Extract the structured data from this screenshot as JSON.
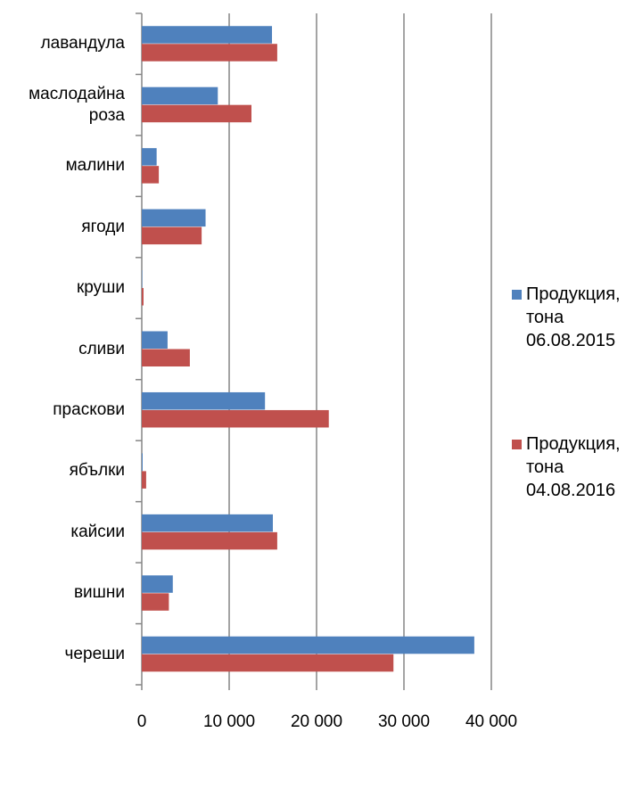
{
  "chart_data": {
    "type": "bar",
    "orientation": "horizontal",
    "categories": [
      "лавандула",
      "маслодайна роза",
      "малини",
      "ягоди",
      "круши",
      "сливи",
      "праскови",
      "ябълки",
      "кайсии",
      "вишни",
      "череши"
    ],
    "series": [
      {
        "name": "Продукция, тона 06.08.2015",
        "color": "#4f81bd",
        "values": [
          14900,
          8700,
          1700,
          7300,
          50,
          2950,
          14100,
          100,
          15000,
          3550,
          38050
        ]
      },
      {
        "name": "Продукция, тона 04.08.2016",
        "color": "#c0504d",
        "values": [
          15500,
          12550,
          1950,
          6850,
          200,
          5500,
          21400,
          500,
          15500,
          3100,
          28800
        ]
      }
    ],
    "xlim": [
      0,
      40000
    ],
    "xticks": [
      0,
      {
        "value": 10000,
        "label": "10 000"
      },
      {
        "value": 20000,
        "label": "20 000"
      },
      {
        "value": 30000,
        "label": "30 000"
      },
      {
        "value": 40000,
        "label": "40 000"
      }
    ],
    "grid": true,
    "legend": "right"
  }
}
